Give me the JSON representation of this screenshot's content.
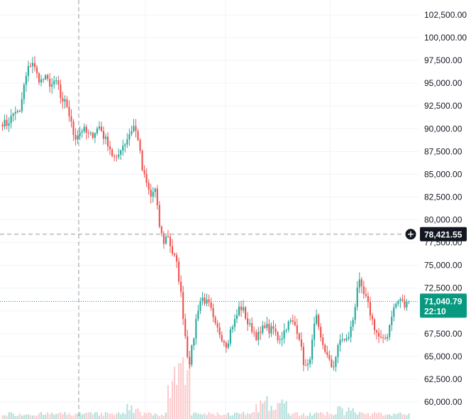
{
  "chart_data": {
    "type": "candlestick",
    "ylim": [
      58500,
      104500
    ],
    "y_ticks": [
      102500,
      100000,
      97500,
      95000,
      92500,
      90000,
      87500,
      85000,
      82500,
      80000,
      77500,
      75000,
      72500,
      70000,
      67500,
      65000,
      62500,
      60000
    ],
    "y_tick_labels": [
      "102,500.00",
      "100,000.00",
      "97,500.00",
      "95,000.00",
      "92,500.00",
      "90,000.00",
      "87,500.00",
      "85,000.00",
      "82,500.00",
      "80,000.00",
      "77,500.00",
      "75,000.00",
      "72,500.00",
      "70,000.00",
      "67,500.00",
      "65,000.00",
      "62,500.00",
      "60,000.00"
    ],
    "crosshair_price": 78421.55,
    "crosshair_label": "78,421.55",
    "last_price": 71040.79,
    "last_price_label": "71,040.79",
    "countdown_label": "22:10",
    "grid": true,
    "colors": {
      "up": "#26a69a",
      "down": "#ef5350",
      "grid": "#f0f3fa",
      "crosshair": "#9598a1",
      "crosshair_badge": "#131722",
      "last_price_badge": "#089981",
      "volume_up": "#b2dfdb",
      "volume_down": "#fccbcd"
    },
    "approx_close_path": [
      90700,
      90500,
      91200,
      92000,
      91500,
      94500,
      96500,
      97500,
      96000,
      95200,
      95600,
      95000,
      94800,
      95300,
      92500,
      93000,
      91000,
      89000,
      89500,
      90000,
      89400,
      89200,
      89800,
      90300,
      89000,
      88400,
      87000,
      86500,
      88000,
      88500,
      89500,
      90300,
      89000,
      85500,
      84000,
      82500,
      83500,
      79500,
      77500,
      78500,
      76500,
      75500,
      72500,
      68000,
      64000,
      66500,
      70000,
      71500,
      71000,
      70500,
      68500,
      67800,
      67000,
      66200,
      68200,
      69000,
      70500,
      70000,
      68500,
      68000,
      67200,
      67500,
      68600,
      67800,
      68000,
      67000,
      67200,
      68300,
      68800,
      68500,
      67500,
      64500,
      63500,
      66000,
      69500,
      67000,
      66000,
      64500,
      63700,
      65500,
      67200,
      66500,
      67500,
      69500,
      73500,
      72000,
      71200,
      69500,
      68000,
      67000,
      66600,
      67500,
      69800,
      70800,
      71300,
      70500,
      71040
    ]
  }
}
